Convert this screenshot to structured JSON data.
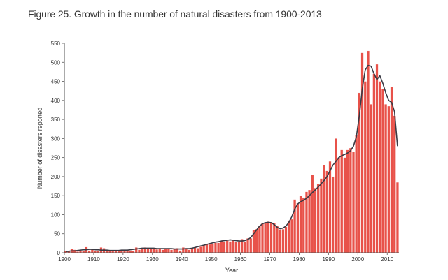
{
  "figure": {
    "title": "Figure 25. Growth in the number of natural disasters from 1900-2013"
  },
  "colors": {
    "bar_fill": "#e8524a",
    "bar_stroke": "#ffffff",
    "line": "#3a3a44",
    "axis": "#555555",
    "text": "#333333"
  },
  "chart_data": {
    "type": "bar",
    "title": "Figure 25. Growth in the number of natural disasters from 1900-2013",
    "xlabel": "Year",
    "ylabel": "Number of disasters reported",
    "xlim": [
      1900,
      2013
    ],
    "ylim": [
      0,
      550
    ],
    "x_ticks": [
      1900,
      1910,
      1920,
      1930,
      1940,
      1950,
      1960,
      1970,
      1980,
      1990,
      2000,
      2010
    ],
    "y_ticks": [
      0,
      50,
      100,
      150,
      200,
      250,
      300,
      350,
      400,
      450,
      500,
      550
    ],
    "grid": false,
    "x": [
      1900,
      1901,
      1902,
      1903,
      1904,
      1905,
      1906,
      1907,
      1908,
      1909,
      1910,
      1911,
      1912,
      1913,
      1914,
      1915,
      1916,
      1917,
      1918,
      1919,
      1920,
      1921,
      1922,
      1923,
      1924,
      1925,
      1926,
      1927,
      1928,
      1929,
      1930,
      1931,
      1932,
      1933,
      1934,
      1935,
      1936,
      1937,
      1938,
      1939,
      1940,
      1941,
      1942,
      1943,
      1944,
      1945,
      1946,
      1947,
      1948,
      1949,
      1950,
      1951,
      1952,
      1953,
      1954,
      1955,
      1956,
      1957,
      1958,
      1959,
      1960,
      1961,
      1962,
      1963,
      1964,
      1965,
      1966,
      1967,
      1968,
      1969,
      1970,
      1971,
      1972,
      1973,
      1974,
      1975,
      1976,
      1977,
      1978,
      1979,
      1980,
      1981,
      1982,
      1983,
      1984,
      1985,
      1986,
      1987,
      1988,
      1989,
      1990,
      1991,
      1992,
      1993,
      1994,
      1995,
      1996,
      1997,
      1998,
      1999,
      2000,
      2001,
      2002,
      2003,
      2004,
      2005,
      2006,
      2007,
      2008,
      2009,
      2010,
      2011,
      2012,
      2013
    ],
    "series": [
      {
        "name": "Number of disasters reported",
        "kind": "bar",
        "values": [
          5,
          4,
          10,
          8,
          3,
          6,
          4,
          15,
          6,
          10,
          5,
          6,
          14,
          12,
          8,
          6,
          5,
          4,
          6,
          5,
          7,
          8,
          6,
          5,
          14,
          8,
          12,
          14,
          10,
          12,
          11,
          9,
          12,
          8,
          10,
          12,
          8,
          10,
          12,
          6,
          14,
          12,
          8,
          10,
          14,
          12,
          16,
          20,
          22,
          22,
          24,
          26,
          26,
          32,
          28,
          32,
          30,
          34,
          28,
          30,
          36,
          28,
          38,
          38,
          60,
          62,
          70,
          78,
          80,
          82,
          80,
          78,
          70,
          60,
          62,
          68,
          85,
          88,
          140,
          130,
          150,
          145,
          160,
          165,
          205,
          170,
          180,
          195,
          230,
          215,
          240,
          200,
          300,
          250,
          270,
          250,
          270,
          275,
          265,
          310,
          420,
          525,
          450,
          530,
          390,
          470,
          495,
          450,
          430,
          390,
          385,
          435,
          360,
          185
        ]
      },
      {
        "name": "Trend",
        "kind": "line",
        "values": [
          3,
          4,
          5,
          5,
          6,
          7,
          8,
          8,
          9,
          9,
          8,
          8,
          7,
          7,
          7,
          6,
          6,
          6,
          6,
          7,
          7,
          7,
          8,
          9,
          10,
          11,
          12,
          12,
          12,
          12,
          12,
          11,
          11,
          11,
          11,
          11,
          11,
          10,
          10,
          10,
          10,
          11,
          11,
          12,
          14,
          16,
          18,
          20,
          22,
          24,
          26,
          28,
          29,
          31,
          32,
          33,
          34,
          33,
          32,
          31,
          31,
          32,
          35,
          40,
          50,
          60,
          70,
          76,
          79,
          80,
          79,
          74,
          67,
          63,
          65,
          70,
          80,
          95,
          115,
          128,
          134,
          138,
          143,
          150,
          158,
          165,
          173,
          181,
          190,
          200,
          215,
          230,
          240,
          250,
          255,
          258,
          262,
          268,
          280,
          305,
          360,
          430,
          480,
          492,
          490,
          470,
          455,
          465,
          445,
          420,
          400,
          395,
          370,
          280
        ]
      }
    ]
  }
}
